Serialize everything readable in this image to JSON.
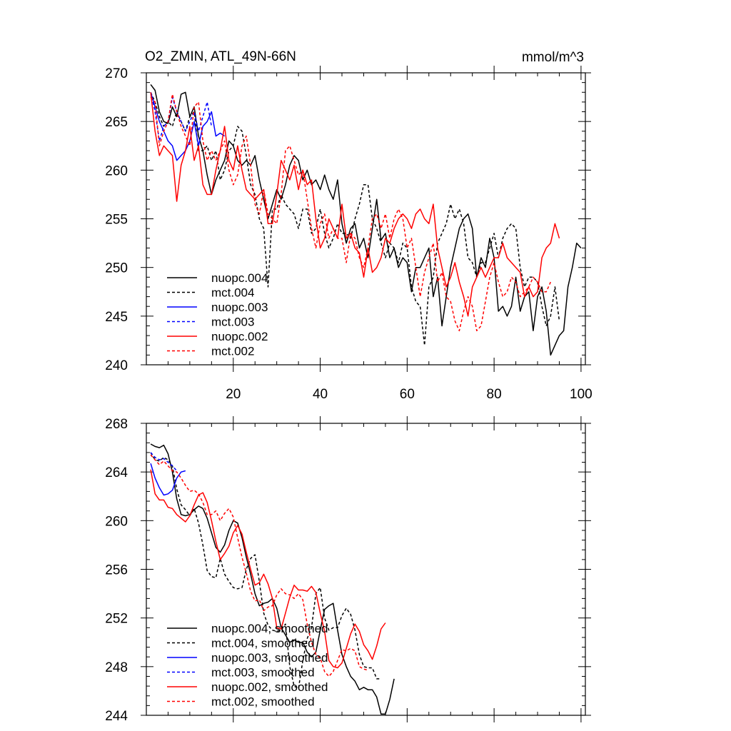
{
  "chart_data": [
    {
      "type": "line",
      "title": "O2_ZMIN, ATL_49N-66N",
      "units": "mmol/m^3",
      "xlim": [
        0,
        101
      ],
      "ylim": [
        240,
        270
      ],
      "x_ticks": [
        20,
        40,
        60,
        80,
        100
      ],
      "y_ticks": [
        240,
        245,
        250,
        255,
        260,
        265,
        270
      ],
      "legend_position": "bottom-left",
      "series": [
        {
          "name": "nuopc.004",
          "color": "#000000",
          "dashed": false,
          "x_start": 1,
          "values": [
            268.8,
            268.2,
            266.0,
            265.0,
            264.8,
            266.5,
            265.5,
            267.8,
            268.0,
            265.5,
            266.5,
            263.5,
            262.0,
            259.5,
            257.5,
            259.0,
            260.0,
            261.0,
            263.0,
            262.5,
            261.0,
            260.5,
            261.0,
            260.5,
            261.5,
            259.0,
            257.0,
            255.0,
            256.5,
            258.0,
            257.0,
            258.5,
            260.5,
            261.5,
            261.0,
            259.0,
            260.0,
            258.5,
            259.0,
            258.0,
            259.5,
            258.0,
            257.0,
            259.0,
            254.5,
            252.5,
            254.0,
            254.5,
            252.0,
            253.0,
            251.0,
            254.0,
            257.0,
            252.8,
            253.5,
            251.0,
            252.0,
            250.0,
            251.0,
            250.5,
            247.5,
            250.0,
            250.0,
            251.0,
            252.0,
            247.0,
            249.0,
            244.0,
            247.0,
            250.0,
            252.0,
            254.0,
            255.0,
            255.5,
            254.0,
            249.0,
            251.0,
            250.0,
            253.0,
            251.0,
            245.5,
            246.0,
            245.0,
            246.0,
            249.0,
            245.5,
            247.0,
            247.5,
            243.5,
            247.0,
            248.0,
            245.5,
            241.0,
            242.0,
            243.0,
            243.5,
            248.0,
            250.0,
            252.5,
            252.0
          ]
        },
        {
          "name": "mct.004",
          "color": "#000000",
          "dashed": true,
          "x_start": 1,
          "values": [
            268.0,
            267.0,
            265.5,
            264.5,
            265.0,
            264.5,
            266.0,
            265.0,
            264.0,
            265.5,
            266.0,
            262.0,
            262.0,
            262.5,
            261.0,
            262.0,
            259.0,
            260.0,
            262.0,
            262.5,
            264.5,
            264.0,
            261.5,
            258.5,
            257.5,
            255.0,
            254.0,
            248.0,
            256.0,
            256.0,
            257.5,
            256.5,
            256.0,
            255.5,
            254.0,
            256.0,
            256.0,
            253.5,
            254.0,
            256.0,
            253.5,
            252.0,
            253.0,
            254.5,
            253.5,
            253.5,
            253.0,
            255.0,
            256.5,
            258.5,
            258.5,
            255.0,
            254.0,
            252.5,
            251.0,
            252.5,
            252.0,
            250.5,
            252.5,
            252.0,
            248.0,
            246.5,
            246.0,
            242.0,
            248.0,
            249.0,
            252.5,
            253.5,
            254.5,
            256.5,
            255.0,
            256.0,
            254.5,
            251.0,
            250.5,
            249.0,
            250.5,
            250.5,
            252.0,
            253.5,
            251.0,
            253.0,
            254.0,
            254.5,
            254.0,
            250.0,
            248.0,
            249.0,
            249.0,
            248.5,
            246.0,
            244.0,
            245.0,
            248.0,
            244.5
          ]
        },
        {
          "name": "nuopc.003",
          "color": "#0000ff",
          "dashed": false,
          "x_start": 1,
          "values": [
            268.0,
            266.5,
            265.0,
            264.0,
            263.0,
            262.5,
            261.0,
            261.5,
            262.0,
            263.0,
            265.0,
            262.5,
            264.5,
            265.0,
            266.0,
            263.5,
            263.8,
            263.5
          ]
        },
        {
          "name": "mct.003",
          "color": "#0000ff",
          "dashed": true,
          "x_start": 1,
          "values": [
            268.0,
            266.0,
            263.0,
            264.5,
            265.0,
            267.5,
            266.0,
            265.0,
            264.0,
            265.0,
            266.0,
            264.0,
            265.5,
            267.0,
            264.5
          ]
        },
        {
          "name": "nuopc.002",
          "color": "#ff0000",
          "dashed": false,
          "x_start": 1,
          "values": [
            268.0,
            264.0,
            261.5,
            262.5,
            262.0,
            261.5,
            256.8,
            260.5,
            262.0,
            264.5,
            261.0,
            262.5,
            258.5,
            257.5,
            257.5,
            260.0,
            262.0,
            264.5,
            261.0,
            260.0,
            262.5,
            260.0,
            258.0,
            257.5,
            257.0,
            257.5,
            258.0,
            254.5,
            254.5,
            257.5,
            261.0,
            260.0,
            259.0,
            260.5,
            258.0,
            260.0,
            258.5,
            259.0,
            255.0,
            252.0,
            253.0,
            255.0,
            254.0,
            253.0,
            256.5,
            253.0,
            253.5,
            252.0,
            251.5,
            249.0,
            252.0,
            249.5,
            250.0,
            251.0,
            253.0,
            252.5,
            254.0,
            255.0,
            255.5,
            255.0,
            254.0,
            255.5,
            256.0,
            255.0,
            254.5,
            256.5,
            252.0,
            250.0,
            248.0,
            249.0,
            250.5,
            248.5,
            247.0,
            245.0,
            248.0,
            249.0,
            250.0,
            249.0,
            250.0,
            251.0,
            251.0,
            252.5,
            251.0,
            250.5,
            250.0,
            249.5,
            247.0,
            248.0,
            247.0,
            247.5,
            251.0,
            252.0,
            252.5,
            254.5,
            253.0
          ]
        },
        {
          "name": "mct.002",
          "color": "#ff0000",
          "dashed": true,
          "x_start": 1,
          "values": [
            267.5,
            267.0,
            262.5,
            264.0,
            265.0,
            267.8,
            266.0,
            264.5,
            263.5,
            262.5,
            266.5,
            267.0,
            263.0,
            261.0,
            262.0,
            261.0,
            262.0,
            263.0,
            260.0,
            258.5,
            259.5,
            262.5,
            263.5,
            260.5,
            256.5,
            255.5,
            258.0,
            255.5,
            255.0,
            254.5,
            257.5,
            262.0,
            262.5,
            261.0,
            259.5,
            260.0,
            257.0,
            254.0,
            252.0,
            254.5,
            255.5,
            253.0,
            254.0,
            253.0,
            253.0,
            250.5,
            253.5,
            253.0,
            251.0,
            250.0,
            252.0,
            255.0,
            255.5,
            254.0,
            255.5,
            253.0,
            255.0,
            256.0,
            255.0,
            252.0,
            253.0,
            250.0,
            247.0,
            249.5,
            251.0,
            252.5,
            248.5,
            249.5,
            247.0,
            246.5,
            244.5,
            243.5,
            245.5,
            247.0,
            246.0,
            243.5,
            244.0,
            246.5,
            249.0,
            250.5,
            248.5,
            247.0,
            247.5,
            249.0,
            248.5,
            247.0,
            247.5,
            248.0,
            249.0,
            248.5,
            247.5,
            247.5,
            248.5
          ]
        }
      ]
    },
    {
      "type": "line",
      "title": "",
      "xlim": [
        0,
        101
      ],
      "ylim": [
        244,
        268
      ],
      "y_ticks": [
        244,
        248,
        252,
        256,
        260,
        264,
        268
      ],
      "legend_position": "bottom-left",
      "series": [
        {
          "name": "nuopc.004, smoothed",
          "color": "#000000",
          "dashed": false,
          "x_start": 1,
          "values": [
            266.3,
            266.1,
            266.0,
            266.2,
            265.5,
            264.0,
            261.8,
            260.5,
            260.4,
            260.5,
            260.9,
            261.2,
            261.0,
            260.2,
            259.0,
            257.8,
            257.4,
            258.0,
            259.2,
            260.0,
            259.8,
            258.6,
            257.0,
            255.6,
            254.0,
            253.0,
            253.2,
            253.3,
            253.6,
            252.8,
            251.2,
            250.6,
            250.0,
            250.2,
            250.0,
            250.0,
            249.2,
            248.8,
            249.2,
            251.0,
            252.7,
            253.0,
            253.2,
            251.0,
            249.0,
            248.0,
            247.2,
            246.8,
            246.1,
            246.3,
            246.1,
            246.1,
            245.5,
            244.1,
            244.1,
            245.3,
            247.0
          ]
        },
        {
          "name": "mct.004, smoothed",
          "color": "#000000",
          "dashed": true,
          "x_start": 1,
          "values": [
            265.6,
            265.0,
            264.9,
            265.2,
            265.0,
            264.5,
            262.6,
            261.3,
            260.9,
            260.4,
            261.0,
            259.8,
            258.0,
            255.9,
            255.4,
            255.3,
            256.9,
            255.6,
            255.0,
            254.5,
            254.4,
            254.5,
            256.0,
            256.9,
            257.2,
            255.0,
            252.4,
            251.4,
            251.0,
            250.9,
            251.0,
            251.5,
            248.0,
            246.4,
            246.2,
            248.5,
            250.3,
            251.2,
            254.0,
            254.5,
            252.0,
            251.0,
            251.2,
            251.2,
            252.2,
            252.8,
            252.3,
            251.0,
            249.0,
            248.0,
            247.9,
            247.9,
            247.0,
            247.0
          ]
        },
        {
          "name": "nuopc.003, smoothed",
          "color": "#0000ff",
          "dashed": false,
          "x_start": 1,
          "values": [
            264.7,
            263.5,
            262.7,
            262.1,
            262.2,
            262.5,
            263.5,
            264.0,
            264.1
          ]
        },
        {
          "name": "mct.003, smoothed",
          "color": "#0000ff",
          "dashed": true,
          "x_start": 1,
          "values": [
            265.6,
            265.2,
            265.0,
            265.1,
            264.8,
            264.5,
            264.1
          ]
        },
        {
          "name": "nuopc.002, smoothed",
          "color": "#ff0000",
          "dashed": false,
          "x_start": 1,
          "values": [
            264.2,
            262.2,
            261.7,
            261.7,
            261.1,
            261.0,
            260.5,
            260.2,
            259.9,
            260.4,
            261.3,
            262.1,
            262.3,
            261.5,
            260.0,
            258.3,
            256.8,
            257.3,
            257.9,
            259.0,
            259.6,
            258.9,
            257.4,
            256.0,
            254.7,
            254.9,
            255.6,
            254.8,
            253.6,
            251.2,
            251.1,
            252.4,
            253.7,
            254.7,
            254.3,
            254.3,
            254.2,
            254.6,
            254.1,
            252.4,
            250.9,
            248.5,
            248.0,
            247.9,
            248.3,
            249.5,
            250.7,
            251.5,
            250.9,
            249.8,
            249.3,
            248.6,
            249.7,
            251.1,
            251.6
          ]
        },
        {
          "name": "mct.002, smoothed",
          "color": "#ff0000",
          "dashed": true,
          "x_start": 1,
          "values": [
            265.4,
            265.0,
            264.6,
            264.9,
            264.5,
            264.1,
            264.0,
            263.5,
            262.9,
            262.4,
            262.5,
            262.2,
            261.5,
            260.5,
            260.5,
            260.8,
            260.0,
            260.6,
            261.0,
            260.3,
            258.6,
            257.0,
            255.7,
            254.2,
            253.4,
            253.5,
            252.6,
            252.9,
            253.0,
            253.9,
            254.4,
            254.0,
            253.9,
            253.6,
            254.0,
            253.5,
            251.5,
            250.0,
            249.0,
            248.7,
            247.6,
            247.2,
            247.6,
            248.5,
            249.4,
            249.3,
            249.5,
            249.3,
            248.0,
            247.8,
            247.7
          ]
        }
      ]
    }
  ]
}
